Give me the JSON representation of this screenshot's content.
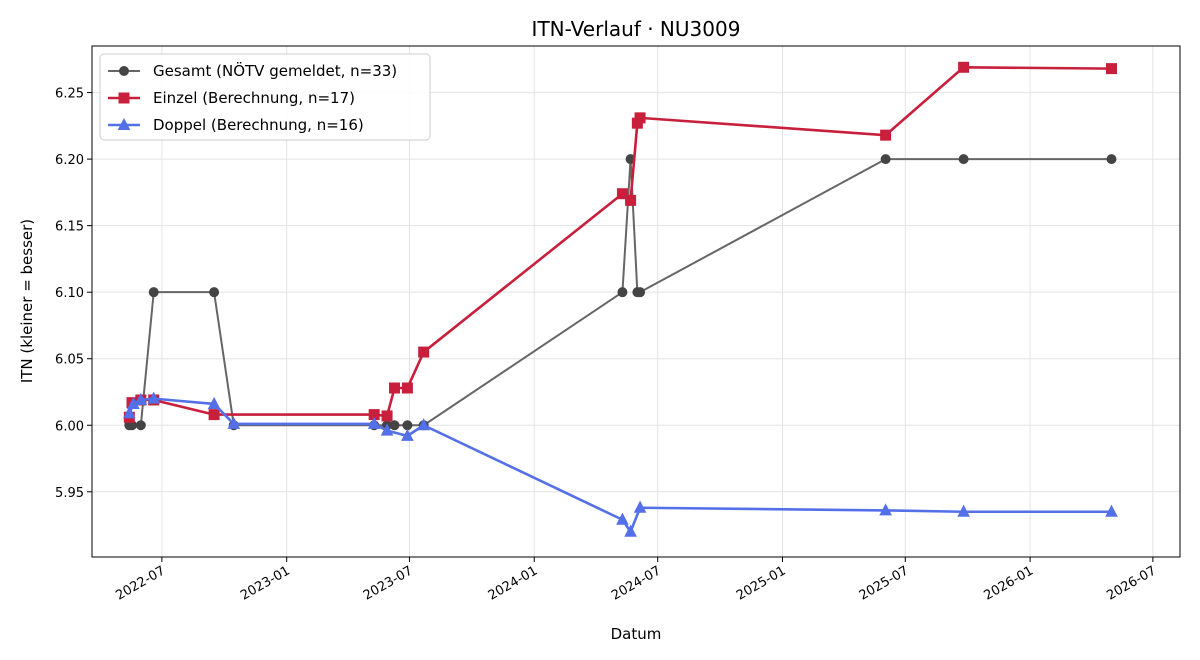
{
  "chart_data": {
    "type": "line",
    "title": "ITN-Verlauf · NU3009",
    "xlabel": "Datum",
    "ylabel": "ITN  (kleiner = besser)",
    "x_ticks": [
      "2022-07",
      "2023-01",
      "2023-07",
      "2024-01",
      "2024-07",
      "2025-01",
      "2025-07",
      "2026-01",
      "2026-07"
    ],
    "y_ticks": [
      "5.95",
      "6.00",
      "6.05",
      "6.10",
      "6.15",
      "6.20",
      "6.25"
    ],
    "xlim": [
      "2022-03-20",
      "2026-08-10"
    ],
    "ylim": [
      5.901,
      6.285
    ],
    "grid": true,
    "legend_position": "top-left",
    "series": [
      {
        "name": "Gesamt (NÖTV gemeldet, n=33)",
        "color": "#666666",
        "marker": "circle",
        "points": [
          [
            "2022-05-14",
            6.0
          ],
          [
            "2022-05-18",
            6.0
          ],
          [
            "2022-05-31",
            6.0
          ],
          [
            "2022-06-19",
            6.1
          ],
          [
            "2022-09-16",
            6.1
          ],
          [
            "2022-10-15",
            6.0
          ],
          [
            "2023-05-10",
            6.0
          ],
          [
            "2023-05-29",
            6.0
          ],
          [
            "2023-06-09",
            6.0
          ],
          [
            "2023-06-28",
            6.0
          ],
          [
            "2023-07-22",
            6.0
          ],
          [
            "2024-05-10",
            6.1
          ],
          [
            "2024-05-22",
            6.2
          ],
          [
            "2024-06-01",
            6.1
          ],
          [
            "2024-06-05",
            6.1
          ],
          [
            "2025-06-02",
            6.2
          ],
          [
            "2025-09-25",
            6.2
          ],
          [
            "2026-05-01",
            6.2
          ]
        ]
      },
      {
        "name": "Einzel (Berechnung, n=17)",
        "color": "#c8203c",
        "marker": "square",
        "points": [
          [
            "2022-05-14",
            6.006
          ],
          [
            "2022-05-18",
            6.017
          ],
          [
            "2022-05-31",
            6.019
          ],
          [
            "2022-06-19",
            6.019
          ],
          [
            "2022-09-16",
            6.008
          ],
          [
            "2023-05-10",
            6.008
          ],
          [
            "2023-05-29",
            6.007
          ],
          [
            "2023-06-09",
            6.028
          ],
          [
            "2023-06-28",
            6.028
          ],
          [
            "2023-07-22",
            6.055
          ],
          [
            "2024-05-10",
            6.174
          ],
          [
            "2024-05-22",
            6.169
          ],
          [
            "2024-06-01",
            6.227
          ],
          [
            "2024-06-05",
            6.231
          ],
          [
            "2025-06-02",
            6.218
          ],
          [
            "2025-09-25",
            6.269
          ],
          [
            "2026-05-01",
            6.268
          ]
        ]
      },
      {
        "name": "Doppel (Berechnung, n=16)",
        "color": "#5470e8",
        "marker": "triangle",
        "points": [
          [
            "2022-05-14",
            6.009
          ],
          [
            "2022-05-20",
            6.016
          ],
          [
            "2022-05-31",
            6.019
          ],
          [
            "2022-06-19",
            6.02
          ],
          [
            "2022-09-16",
            6.016
          ],
          [
            "2022-10-15",
            6.001
          ],
          [
            "2023-05-10",
            6.001
          ],
          [
            "2023-05-29",
            5.996
          ],
          [
            "2023-06-28",
            5.992
          ],
          [
            "2023-07-22",
            6.0
          ],
          [
            "2024-05-10",
            5.929
          ],
          [
            "2024-05-22",
            5.92
          ],
          [
            "2024-06-05",
            5.938
          ],
          [
            "2025-06-02",
            5.936
          ],
          [
            "2025-09-25",
            5.935
          ],
          [
            "2026-05-01",
            5.935
          ]
        ]
      }
    ]
  }
}
